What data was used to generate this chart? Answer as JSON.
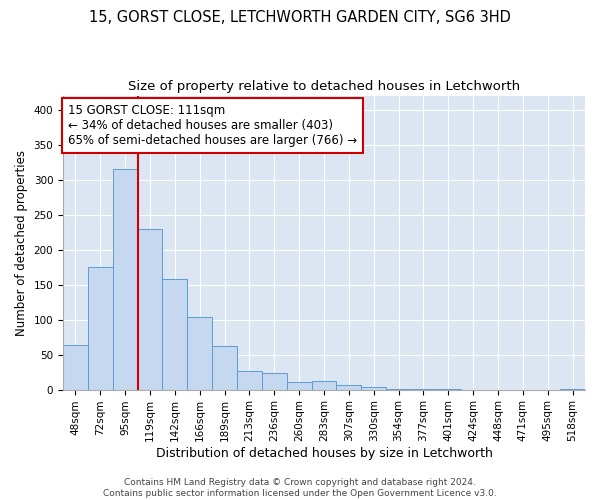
{
  "title1": "15, GORST CLOSE, LETCHWORTH GARDEN CITY, SG6 3HD",
  "title2": "Size of property relative to detached houses in Letchworth",
  "xlabel": "Distribution of detached houses by size in Letchworth",
  "ylabel": "Number of detached properties",
  "bar_values": [
    63,
    175,
    315,
    230,
    158,
    104,
    62,
    27,
    23,
    11,
    12,
    6,
    4,
    1,
    1,
    1,
    0,
    0,
    0,
    0,
    1
  ],
  "bin_labels": [
    "48sqm",
    "72sqm",
    "95sqm",
    "119sqm",
    "142sqm",
    "166sqm",
    "189sqm",
    "213sqm",
    "236sqm",
    "260sqm",
    "283sqm",
    "307sqm",
    "330sqm",
    "354sqm",
    "377sqm",
    "401sqm",
    "424sqm",
    "448sqm",
    "471sqm",
    "495sqm",
    "518sqm"
  ],
  "bar_color": "#c5d8ef",
  "bar_edge_color": "#5b9bd5",
  "vline_x": 2.5,
  "vline_color": "#cc0000",
  "annotation_text": "15 GORST CLOSE: 111sqm\n← 34% of detached houses are smaller (403)\n65% of semi-detached houses are larger (766) →",
  "annotation_box_color": "#ffffff",
  "annotation_box_edge": "#cc0000",
  "ylim": [
    0,
    420
  ],
  "yticks": [
    0,
    50,
    100,
    150,
    200,
    250,
    300,
    350,
    400
  ],
  "background_color": "#dce6f2",
  "footer_text": "Contains HM Land Registry data © Crown copyright and database right 2024.\nContains public sector information licensed under the Open Government Licence v3.0.",
  "title1_fontsize": 10.5,
  "title2_fontsize": 9.5,
  "xlabel_fontsize": 9,
  "ylabel_fontsize": 8.5,
  "tick_fontsize": 7.5,
  "annotation_fontsize": 8.5,
  "footer_fontsize": 6.5
}
